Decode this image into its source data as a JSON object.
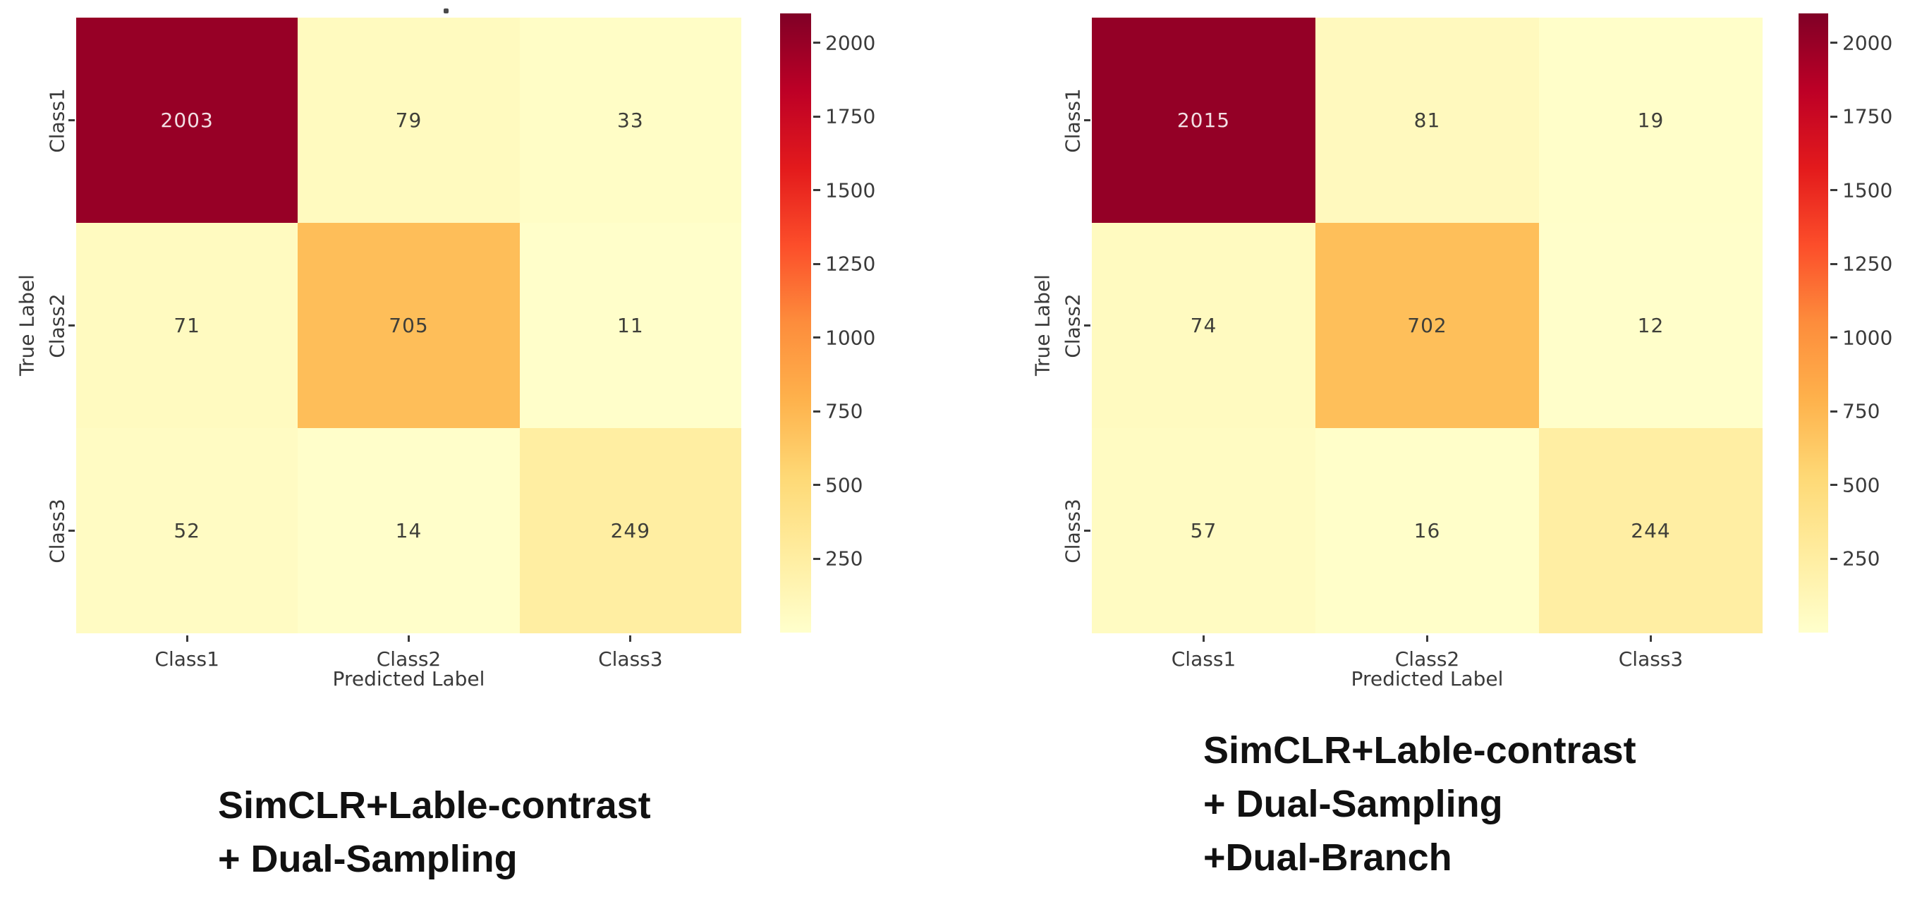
{
  "chart_data": [
    {
      "type": "heatmap",
      "caption_lines": [
        "SimCLR+Lable-contrast",
        "+ Dual-Sampling"
      ],
      "x_categories": [
        "Class1",
        "Class2",
        "Class3"
      ],
      "y_categories": [
        "Class1",
        "Class2",
        "Class3"
      ],
      "xlabel": "Predicted Label",
      "ylabel": "True Label",
      "values": [
        [
          2003,
          79,
          33
        ],
        [
          71,
          705,
          11
        ],
        [
          52,
          14,
          249
        ]
      ],
      "colormap": "YlOrRd",
      "color_range": [
        0,
        2100
      ],
      "colorbar_ticks": [
        250,
        500,
        750,
        1000,
        1250,
        1500,
        1750,
        2000
      ],
      "legend_position": "right",
      "grid": false
    },
    {
      "type": "heatmap",
      "caption_lines": [
        "SimCLR+Lable-contrast",
        "+ Dual-Sampling",
        "+Dual-Branch"
      ],
      "x_categories": [
        "Class1",
        "Class2",
        "Class3"
      ],
      "y_categories": [
        "Class1",
        "Class2",
        "Class3"
      ],
      "xlabel": "Predicted Label",
      "ylabel": "True Label",
      "values": [
        [
          2015,
          81,
          19
        ],
        [
          74,
          702,
          12
        ],
        [
          57,
          16,
          244
        ]
      ],
      "colormap": "YlOrRd",
      "color_range": [
        0,
        2100
      ],
      "colorbar_ticks": [
        250,
        500,
        750,
        1000,
        1250,
        1500,
        1750,
        2000
      ],
      "legend_position": "right",
      "grid": false
    }
  ],
  "colors": {
    "colormap_stops": [
      [
        0,
        "#ffffcc"
      ],
      [
        0.125,
        "#ffeda0"
      ],
      [
        0.25,
        "#fed976"
      ],
      [
        0.375,
        "#feb24c"
      ],
      [
        0.5,
        "#fd8d3c"
      ],
      [
        0.625,
        "#fc4e2a"
      ],
      [
        0.75,
        "#e31a1c"
      ],
      [
        0.875,
        "#bd0026"
      ],
      [
        1,
        "#800026"
      ]
    ],
    "annot_dark": "#3f3f39",
    "annot_light": "#f2dfe4",
    "axis_text": "#3a3a3a",
    "caption_text": "#111111",
    "background": "#ffffff"
  },
  "stray_mark": "."
}
